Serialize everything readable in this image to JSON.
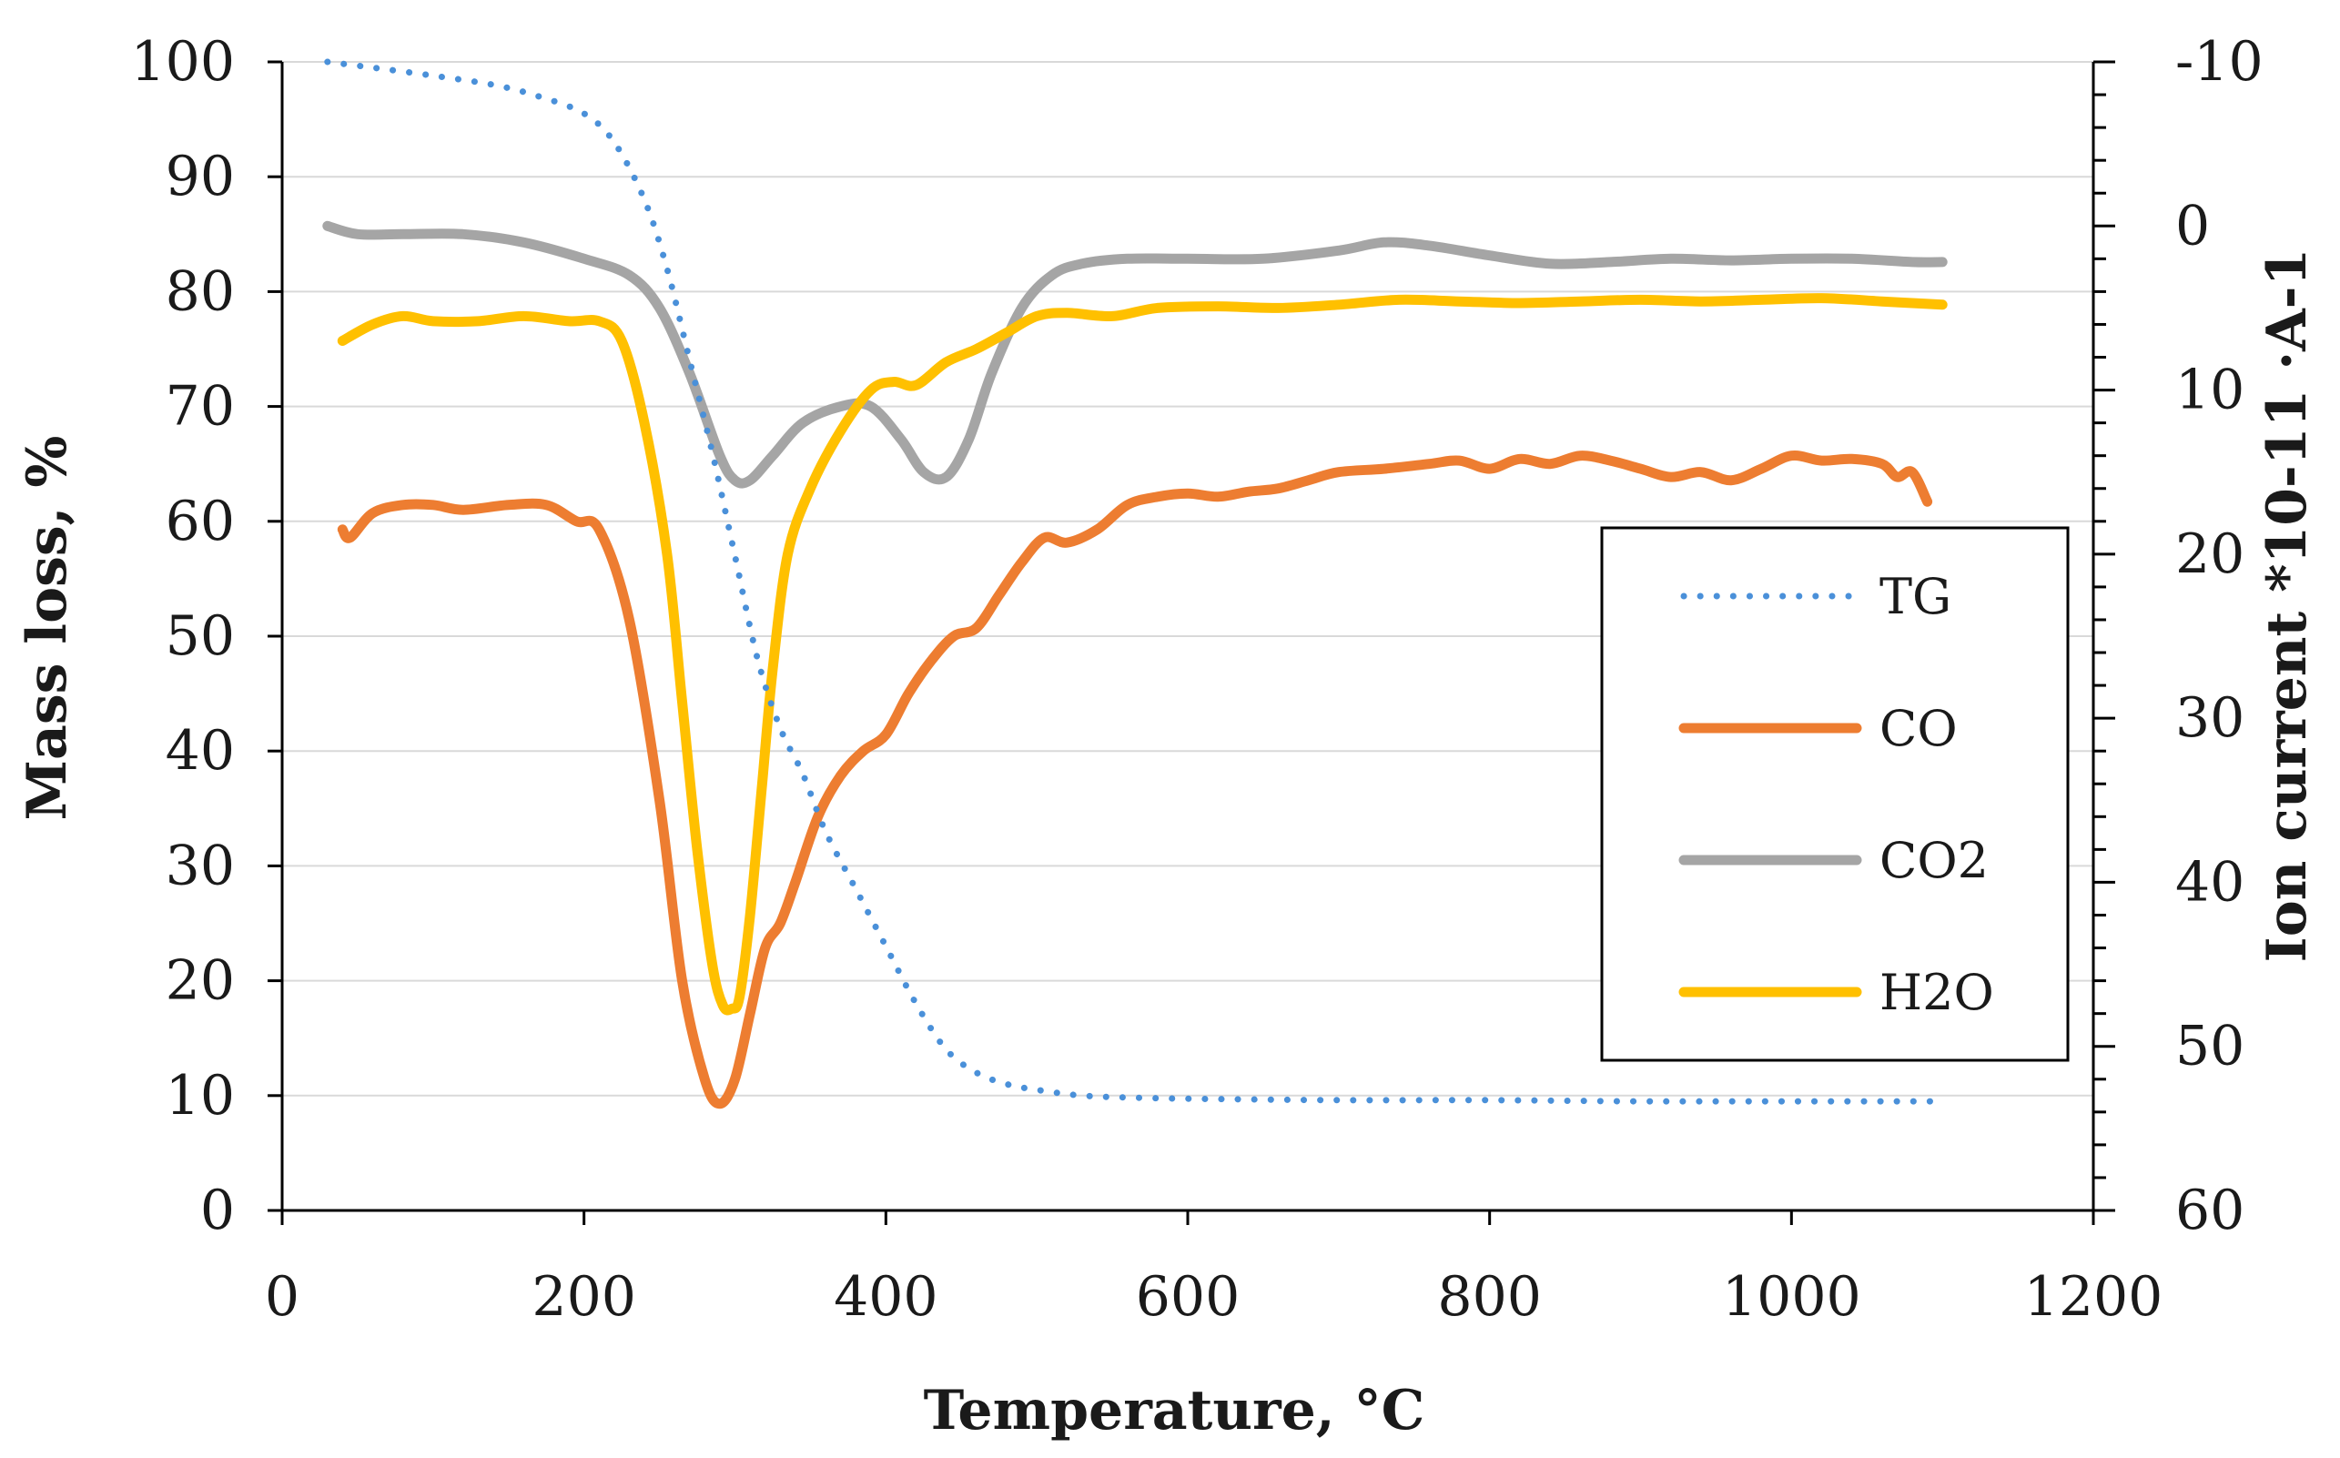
{
  "chart_data": {
    "type": "line",
    "title": "",
    "xlabel": "Temperature, °C",
    "ylabel": "Mass loss, %",
    "y2label": "Ion current *10-11 ·A-1",
    "xlim": [
      0,
      1200
    ],
    "ylim": [
      0,
      100
    ],
    "y2lim": [
      60,
      -10
    ],
    "xticks": [
      0,
      200,
      400,
      600,
      800,
      1000,
      1200
    ],
    "yticks": [
      0,
      10,
      20,
      30,
      40,
      50,
      60,
      70,
      80,
      90,
      100
    ],
    "y2ticks": [
      -10,
      0,
      10,
      20,
      30,
      40,
      50,
      60
    ],
    "grid": true,
    "legend_position": "right",
    "colors": {
      "TG": "#4a90d9",
      "CO": "#ed7d31",
      "CO2": "#a5a5a5",
      "H2O": "#ffc000",
      "grid": "#d9d9d9",
      "axis": "#000000"
    },
    "series": [
      {
        "name": "TG",
        "axis": "left",
        "style": "dotted",
        "x": [
          30,
          60,
          100,
          140,
          170,
          200,
          220,
          240,
          255,
          270,
          285,
          300,
          315,
          330,
          345,
          360,
          380,
          400,
          420,
          440,
          460,
          480,
          500,
          530,
          570,
          620,
          700,
          800,
          900,
          1000,
          1100
        ],
        "y": [
          100,
          99.5,
          98.8,
          98,
          97,
          95.5,
          93,
          88,
          82,
          74,
          66,
          57,
          48,
          42,
          38,
          33,
          28,
          23,
          18,
          14,
          12,
          11,
          10.5,
          10,
          9.8,
          9.7,
          9.6,
          9.6,
          9.5,
          9.5,
          9.5
        ]
      },
      {
        "name": "CO",
        "axis": "right",
        "style": "solid",
        "x": [
          40,
          45,
          60,
          80,
          100,
          120,
          150,
          175,
          195,
          210,
          230,
          250,
          265,
          280,
          290,
          300,
          310,
          320,
          330,
          340,
          355,
          370,
          385,
          400,
          415,
          430,
          445,
          460,
          475,
          490,
          505,
          520,
          540,
          560,
          580,
          600,
          620,
          640,
          660,
          680,
          700,
          730,
          760,
          780,
          800,
          820,
          840,
          860,
          880,
          900,
          920,
          940,
          960,
          980,
          1000,
          1020,
          1040,
          1060,
          1070,
          1080,
          1090
        ],
        "y": [
          18.5,
          19,
          17.5,
          17,
          17,
          17.3,
          17,
          17,
          18,
          18.5,
          24,
          35,
          46,
          52,
          53.5,
          52,
          48,
          44,
          42.5,
          40,
          36,
          33.5,
          32,
          31,
          28.5,
          26.5,
          25,
          24.5,
          22.5,
          20.5,
          19,
          19.3,
          18.5,
          17,
          16.5,
          16.3,
          16.5,
          16.2,
          16,
          15.5,
          15,
          14.8,
          14.5,
          14.3,
          14.8,
          14.2,
          14.5,
          14,
          14.3,
          14.8,
          15.3,
          15,
          15.5,
          14.8,
          14,
          14.3,
          14.2,
          14.5,
          15.3,
          15,
          16.8
        ]
      },
      {
        "name": "CO2",
        "axis": "right",
        "style": "solid",
        "x": [
          30,
          50,
          80,
          120,
          160,
          200,
          230,
          250,
          270,
          290,
          300,
          310,
          325,
          345,
          370,
          390,
          410,
          425,
          440,
          455,
          470,
          490,
          510,
          530,
          560,
          600,
          650,
          700,
          730,
          760,
          800,
          840,
          880,
          920,
          960,
          1000,
          1040,
          1080,
          1100
        ],
        "y": [
          0,
          0.5,
          0.5,
          0.5,
          1,
          2,
          3,
          5,
          9,
          14,
          15.5,
          15.5,
          14,
          12,
          11,
          11,
          13,
          15,
          15.3,
          13,
          9,
          5,
          3,
          2.3,
          2,
          2,
          2,
          1.5,
          1,
          1.2,
          1.8,
          2.3,
          2.2,
          2,
          2.1,
          2,
          2,
          2.2,
          2.2
        ]
      },
      {
        "name": "H2O",
        "axis": "right",
        "style": "solid",
        "x": [
          40,
          60,
          80,
          100,
          130,
          160,
          190,
          210,
          225,
          240,
          255,
          265,
          275,
          285,
          292,
          298,
          303,
          310,
          318,
          325,
          335,
          350,
          370,
          390,
          405,
          420,
          440,
          460,
          480,
          500,
          520,
          550,
          580,
          620,
          660,
          700,
          740,
          780,
          820,
          860,
          900,
          940,
          980,
          1020,
          1060,
          1080,
          1100
        ],
        "y": [
          7,
          6,
          5.5,
          5.8,
          5.8,
          5.5,
          5.8,
          5.8,
          7,
          12,
          20,
          29,
          38,
          45,
          47.5,
          47.7,
          47,
          42,
          34,
          27,
          20,
          16,
          12.5,
          10,
          9.5,
          9.7,
          8.3,
          7.5,
          6.5,
          5.5,
          5.3,
          5.5,
          5,
          4.9,
          5,
          4.8,
          4.5,
          4.6,
          4.7,
          4.6,
          4.5,
          4.6,
          4.5,
          4.4,
          4.6,
          4.7,
          4.8
        ]
      }
    ]
  }
}
